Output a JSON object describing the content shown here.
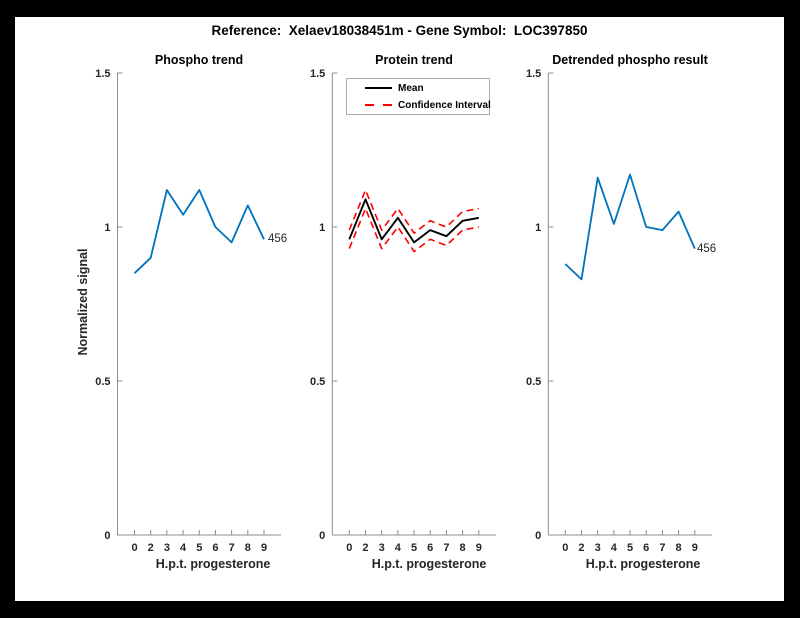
{
  "window": {
    "background": "#000000",
    "canvas_background": "#ffffff"
  },
  "figure_title": "Reference:  Xelaev18038451m - Gene Symbol:  LOC397850",
  "axes_style": {
    "xlabel": "H.p.t. progesterone",
    "ylabel": "Normalized signal",
    "ylim": [
      0,
      1.5
    ],
    "yticks": [
      0,
      0.5,
      1,
      1.5
    ],
    "ytick_labels": [
      "0",
      "0.5",
      "1",
      "1.5"
    ],
    "xtick_labels": [
      "0",
      "2",
      "3",
      "4",
      "5",
      "6",
      "7",
      "8",
      "9"
    ],
    "axis_color": "#8c8c8c",
    "text_color": "#262626"
  },
  "chart_data": [
    {
      "type": "line",
      "title": "Phospho trend",
      "xlabel": "H.p.t. progesterone",
      "ylabel": "Normalized signal",
      "x": [
        0,
        2,
        3,
        4,
        5,
        6,
        7,
        8,
        9
      ],
      "values": [
        0.85,
        0.9,
        1.12,
        1.04,
        1.12,
        1.0,
        0.95,
        1.07,
        0.96
      ],
      "color": "#0072BD",
      "annotation": "456",
      "ylim": [
        0,
        1.5
      ],
      "grid": false,
      "legend_position": "none"
    },
    {
      "type": "line",
      "title": "Protein trend",
      "xlabel": "H.p.t. progesterone",
      "x": [
        0,
        2,
        3,
        4,
        5,
        6,
        7,
        8,
        9
      ],
      "series": [
        {
          "name": "Mean",
          "color": "#000000",
          "style": "solid",
          "values": [
            0.96,
            1.09,
            0.96,
            1.03,
            0.95,
            0.99,
            0.97,
            1.02,
            1.03
          ]
        },
        {
          "name": "Confidence Interval",
          "color": "#FF0000",
          "style": "dashed",
          "values_upper": [
            0.99,
            1.12,
            0.99,
            1.06,
            0.98,
            1.02,
            1.0,
            1.05,
            1.06
          ],
          "values_lower": [
            0.93,
            1.06,
            0.93,
            1.0,
            0.92,
            0.96,
            0.94,
            0.99,
            1.0
          ]
        }
      ],
      "legend": [
        "Mean",
        "Confidence Interval"
      ],
      "legend_position": "northwest",
      "ylim": [
        0,
        1.5
      ],
      "grid": false
    },
    {
      "type": "line",
      "title": "Detrended phospho result",
      "xlabel": "H.p.t. progesterone",
      "x": [
        0,
        2,
        3,
        4,
        5,
        6,
        7,
        8,
        9
      ],
      "values": [
        0.88,
        0.83,
        1.16,
        1.01,
        1.17,
        1.0,
        0.99,
        1.05,
        0.93
      ],
      "color": "#0072BD",
      "annotation": "456",
      "ylim": [
        0,
        1.5
      ],
      "grid": false,
      "legend_position": "none"
    }
  ]
}
